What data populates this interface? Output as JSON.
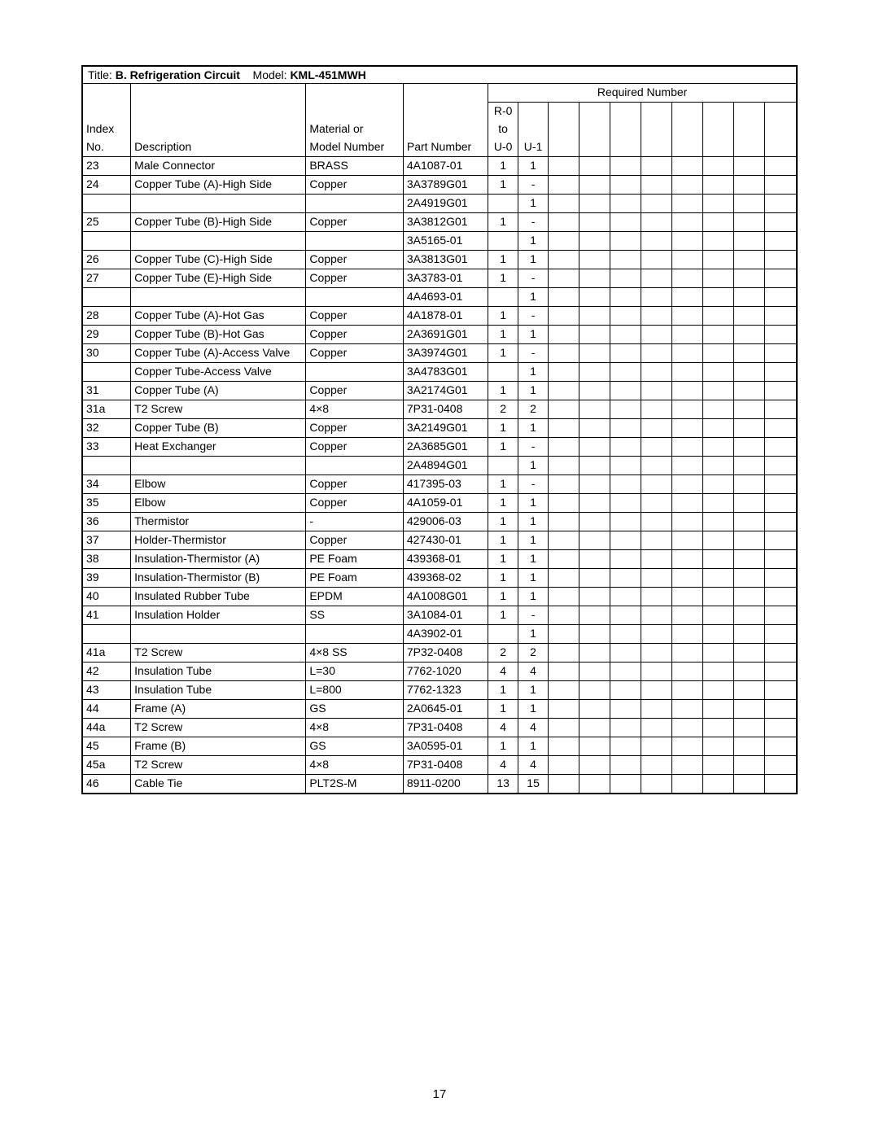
{
  "title_prefix": "Title: ",
  "title_bold": "B. Refrigeration Circuit",
  "model_prefix": "    Model: ",
  "model_bold": "KML-451MWH",
  "required_number_label": "Required Number",
  "header": {
    "index1": "Index",
    "index2": "No.",
    "desc": "Description",
    "mat1": "Material or",
    "mat2": "Model Number",
    "part": "Part Number",
    "u0a": "R-0",
    "u0b": "to",
    "u0c": "U-0",
    "u1": "U-1"
  },
  "rows": [
    {
      "idx": "23",
      "desc": "Male Connector",
      "mat": "BRASS",
      "part": "4A1087-01",
      "u0": "1",
      "u1": "1"
    },
    {
      "idx": "24",
      "desc": "Copper Tube (A)-High Side",
      "mat": "Copper",
      "part": "3A3789G01",
      "u0": "1",
      "u1": "-"
    },
    {
      "idx": "",
      "desc": "",
      "mat": "",
      "part": "2A4919G01",
      "u0": "",
      "u1": "1"
    },
    {
      "idx": "25",
      "desc": "Copper Tube (B)-High Side",
      "mat": "Copper",
      "part": "3A3812G01",
      "u0": "1",
      "u1": "-"
    },
    {
      "idx": "",
      "desc": "",
      "mat": "",
      "part": "3A5165-01",
      "u0": "",
      "u1": "1"
    },
    {
      "idx": "26",
      "desc": "Copper Tube (C)-High Side",
      "mat": "Copper",
      "part": "3A3813G01",
      "u0": "1",
      "u1": "1"
    },
    {
      "idx": "27",
      "desc": "Copper Tube (E)-High Side",
      "mat": "Copper",
      "part": "3A3783-01",
      "u0": "1",
      "u1": "-"
    },
    {
      "idx": "",
      "desc": "",
      "mat": "",
      "part": "4A4693-01",
      "u0": "",
      "u1": "1"
    },
    {
      "idx": "28",
      "desc": "Copper Tube (A)-Hot Gas",
      "mat": "Copper",
      "part": "4A1878-01",
      "u0": "1",
      "u1": "-"
    },
    {
      "idx": "29",
      "desc": "Copper Tube (B)-Hot Gas",
      "mat": "Copper",
      "part": "2A3691G01",
      "u0": "1",
      "u1": "1"
    },
    {
      "idx": "30",
      "desc": "Copper Tube (A)-Access Valve",
      "mat": "Copper",
      "part": "3A3974G01",
      "u0": "1",
      "u1": "-"
    },
    {
      "idx": "",
      "desc": "Copper Tube-Access Valve",
      "mat": "",
      "part": "3A4783G01",
      "u0": "",
      "u1": "1"
    },
    {
      "idx": "31",
      "desc": "Copper Tube (A)",
      "mat": "Copper",
      "part": "3A2174G01",
      "u0": "1",
      "u1": "1"
    },
    {
      "idx": "31a",
      "desc": "T2 Screw",
      "mat": "4×8",
      "part": "7P31-0408",
      "u0": "2",
      "u1": "2"
    },
    {
      "idx": "32",
      "desc": "Copper Tube (B)",
      "mat": "Copper",
      "part": "3A2149G01",
      "u0": "1",
      "u1": "1"
    },
    {
      "idx": "33",
      "desc": "Heat Exchanger",
      "mat": "Copper",
      "part": "2A3685G01",
      "u0": "1",
      "u1": "-"
    },
    {
      "idx": "",
      "desc": "",
      "mat": "",
      "part": "2A4894G01",
      "u0": "",
      "u1": "1"
    },
    {
      "idx": "34",
      "desc": "Elbow",
      "mat": "Copper",
      "part": "417395-03",
      "u0": "1",
      "u1": "-"
    },
    {
      "idx": "35",
      "desc": "Elbow",
      "mat": "Copper",
      "part": "4A1059-01",
      "u0": "1",
      "u1": "1"
    },
    {
      "idx": "36",
      "desc": "Thermistor",
      "mat": "-",
      "part": "429006-03",
      "u0": "1",
      "u1": "1"
    },
    {
      "idx": "37",
      "desc": "Holder-Thermistor",
      "mat": "Copper",
      "part": "427430-01",
      "u0": "1",
      "u1": "1"
    },
    {
      "idx": "38",
      "desc": "Insulation-Thermistor (A)",
      "mat": "PE Foam",
      "part": "439368-01",
      "u0": "1",
      "u1": "1"
    },
    {
      "idx": "39",
      "desc": "Insulation-Thermistor (B)",
      "mat": "PE Foam",
      "part": "439368-02",
      "u0": "1",
      "u1": "1"
    },
    {
      "idx": "40",
      "desc": "Insulated Rubber Tube",
      "mat": "EPDM",
      "part": "4A1008G01",
      "u0": "1",
      "u1": "1"
    },
    {
      "idx": "41",
      "desc": "Insulation Holder",
      "mat": "SS",
      "part": "3A1084-01",
      "u0": "1",
      "u1": "-"
    },
    {
      "idx": "",
      "desc": "",
      "mat": "",
      "part": "4A3902-01",
      "u0": "",
      "u1": "1"
    },
    {
      "idx": "41a",
      "desc": "T2 Screw",
      "mat": "4×8 SS",
      "part": "7P32-0408",
      "u0": "2",
      "u1": "2"
    },
    {
      "idx": "42",
      "desc": "Insulation Tube",
      "mat": "L=30",
      "part": "7762-1020",
      "u0": "4",
      "u1": "4"
    },
    {
      "idx": "43",
      "desc": "Insulation Tube",
      "mat": "L=800",
      "part": "7762-1323",
      "u0": "1",
      "u1": "1"
    },
    {
      "idx": "44",
      "desc": "Frame (A)",
      "mat": "GS",
      "part": "2A0645-01",
      "u0": "1",
      "u1": "1"
    },
    {
      "idx": "44a",
      "desc": "T2 Screw",
      "mat": "4×8",
      "part": "7P31-0408",
      "u0": "4",
      "u1": "4"
    },
    {
      "idx": "45",
      "desc": "Frame (B)",
      "mat": "GS",
      "part": "3A0595-01",
      "u0": "1",
      "u1": "1"
    },
    {
      "idx": "45a",
      "desc": "T2 Screw",
      "mat": "4×8",
      "part": "7P31-0408",
      "u0": "4",
      "u1": "4"
    },
    {
      "idx": "46",
      "desc": "Cable Tie",
      "mat": "PLT2S-M",
      "part": "8911-0200",
      "u0": "13",
      "u1": "15"
    }
  ],
  "page_number": "17"
}
